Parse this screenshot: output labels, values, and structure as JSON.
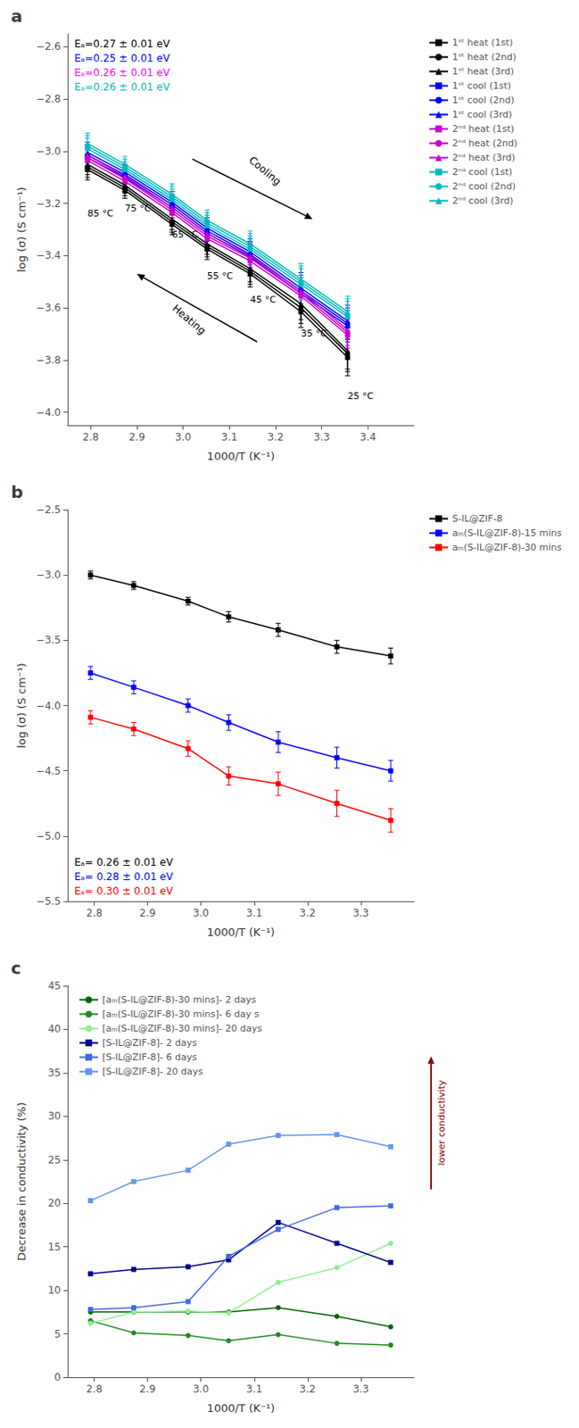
{
  "chart_data": [
    {
      "type": "line",
      "title": "a",
      "xlabel": "1000/T (K⁻¹)",
      "ylabel": "log (σ) (S cm⁻¹)",
      "xlim": [
        2.75,
        3.5
      ],
      "ylim": [
        -4.05,
        -2.55
      ],
      "xticks": [
        2.8,
        2.9,
        {
          "value": 3.0,
          "label": "3.0"
        },
        3.1,
        3.2,
        3.3,
        3.4
      ],
      "yticks": [
        {
          "value": -4.0,
          "label": "−4.0"
        },
        {
          "value": -3.8,
          "label": "−3.8"
        },
        {
          "value": -3.6,
          "label": "−3.6"
        },
        {
          "value": -3.4,
          "label": "−3.4"
        },
        {
          "value": -3.2,
          "label": "−3.2"
        },
        {
          "value": -3.0,
          "label": "−3.0"
        },
        {
          "value": -2.8,
          "label": "−2.8"
        },
        {
          "value": -2.6,
          "label": "−2.6"
        }
      ],
      "grid": false,
      "legend": "right",
      "x": [
        2.793,
        2.874,
        2.976,
        3.052,
        3.145,
        3.255,
        3.356
      ],
      "series": [
        {
          "name": "1ˢᵗ heat (1st)",
          "color": "#000000",
          "marker": "square",
          "values": [
            -3.07,
            -3.15,
            -3.28,
            -3.375,
            -3.47,
            -3.615,
            -3.79
          ],
          "yerr": [
            0.04,
            0.03,
            0.04,
            0.04,
            0.05,
            0.06,
            0.07
          ]
        },
        {
          "name": "1ˢᵗ heat (2nd)",
          "color": "#000000",
          "marker": "circle",
          "values": [
            -3.06,
            -3.14,
            -3.27,
            -3.365,
            -3.46,
            -3.6,
            -3.775
          ],
          "yerr": [
            0.04,
            0.03,
            0.04,
            0.04,
            0.05,
            0.06,
            0.07
          ]
        },
        {
          "name": "1ˢᵗ heat (3rd)",
          "color": "#000000",
          "marker": "triangle",
          "values": [
            -3.05,
            -3.13,
            -3.26,
            -3.355,
            -3.45,
            -3.585,
            -3.765
          ],
          "yerr": [
            0.04,
            0.03,
            0.04,
            0.04,
            0.05,
            0.06,
            0.07
          ]
        },
        {
          "name": "1ˢᵗ cool (1st)",
          "color": "#0000FF",
          "marker": "square",
          "values": [
            -3.025,
            -3.1,
            -3.215,
            -3.315,
            -3.405,
            -3.545,
            -3.67
          ],
          "yerr": [
            0.04,
            0.03,
            0.04,
            0.04,
            0.05,
            0.06,
            0.06
          ]
        },
        {
          "name": "1ˢᵗ cool (2nd)",
          "color": "#0000FF",
          "marker": "circle",
          "values": [
            -3.015,
            -3.09,
            -3.205,
            -3.305,
            -3.395,
            -3.535,
            -3.66
          ],
          "yerr": [
            0.04,
            0.03,
            0.04,
            0.04,
            0.05,
            0.06,
            0.06
          ]
        },
        {
          "name": "1ˢᵗ cool (3rd)",
          "color": "#0000FF",
          "marker": "triangle",
          "values": [
            -3.005,
            -3.08,
            -3.195,
            -3.295,
            -3.385,
            -3.525,
            -3.65
          ],
          "yerr": [
            0.04,
            0.03,
            0.04,
            0.04,
            0.05,
            0.06,
            0.06
          ]
        },
        {
          "name": "2ⁿᵈ heat (1st)",
          "color": "#CC00CC",
          "marker": "square",
          "values": [
            -3.035,
            -3.115,
            -3.235,
            -3.335,
            -3.42,
            -3.555,
            -3.705
          ],
          "yerr": [
            0.04,
            0.03,
            0.04,
            0.04,
            0.05,
            0.06,
            0.06
          ]
        },
        {
          "name": "2ⁿᵈ heat (2nd)",
          "color": "#CC00CC",
          "marker": "circle",
          "values": [
            -3.025,
            -3.105,
            -3.225,
            -3.325,
            -3.41,
            -3.545,
            -3.695
          ],
          "yerr": [
            0.04,
            0.03,
            0.04,
            0.04,
            0.05,
            0.06,
            0.06
          ]
        },
        {
          "name": "2ⁿᵈ heat (3rd)",
          "color": "#CC00CC",
          "marker": "triangle",
          "values": [
            -3.015,
            -3.095,
            -3.215,
            -3.315,
            -3.4,
            -3.535,
            -3.685
          ],
          "yerr": [
            0.04,
            0.03,
            0.04,
            0.04,
            0.05,
            0.06,
            0.06
          ]
        },
        {
          "name": "2ⁿᵈ cool (1st)",
          "color": "#00BBBB",
          "marker": "square",
          "values": [
            -2.99,
            -3.07,
            -3.185,
            -3.285,
            -3.375,
            -3.51,
            -3.635
          ],
          "yerr": [
            0.04,
            0.03,
            0.04,
            0.04,
            0.05,
            0.06,
            0.06
          ]
        },
        {
          "name": "2ⁿᵈ cool (2nd)",
          "color": "#00BBBB",
          "marker": "circle",
          "values": [
            -2.98,
            -3.06,
            -3.175,
            -3.275,
            -3.365,
            -3.5,
            -3.625
          ],
          "yerr": [
            0.04,
            0.03,
            0.04,
            0.04,
            0.05,
            0.06,
            0.06
          ]
        },
        {
          "name": "2ⁿᵈ cool (3rd)",
          "color": "#00BBBB",
          "marker": "triangle",
          "values": [
            -2.97,
            -3.05,
            -3.165,
            -3.265,
            -3.355,
            -3.49,
            -3.615
          ],
          "yerr": [
            0.04,
            0.03,
            0.04,
            0.04,
            0.05,
            0.06,
            0.06
          ]
        }
      ],
      "annotations": [
        {
          "text": "85 °C",
          "x": 2.793,
          "y": -3.22
        },
        {
          "text": "75 °C",
          "x": 2.874,
          "y": -3.2
        },
        {
          "text": "65 °C",
          "x": 2.976,
          "y": -3.3
        },
        {
          "text": "55 °C",
          "x": 3.052,
          "y": -3.46
        },
        {
          "text": "45 °C",
          "x": 3.145,
          "y": -3.55
        },
        {
          "text": "35 °C",
          "x": 3.255,
          "y": -3.68
        },
        {
          "text": "25 °C",
          "x": 3.356,
          "y": -3.92
        },
        {
          "text": "Cooling",
          "x": 3.17,
          "y": -3.09,
          "arrow_from": [
            3.02,
            -3.03
          ],
          "arrow_to": [
            3.28,
            -3.26
          ]
        },
        {
          "text": "Heating",
          "x": 3.02,
          "y": -3.63,
          "arrow_from": [
            3.16,
            -3.73
          ],
          "arrow_to": [
            2.9,
            -3.47
          ]
        },
        {
          "text": "Eₐ=0.27 ± 0.01 eV",
          "color": "#000000"
        },
        {
          "text": "Eₐ=0.25 ± 0.01 eV",
          "color": "#0000FF"
        },
        {
          "text": "Eₐ=0.26 ± 0.01 eV",
          "color": "#FF00FF"
        },
        {
          "text": "Eₐ=0.26 ± 0.01 eV",
          "color": "#00BBBB"
        }
      ]
    },
    {
      "type": "line",
      "title": "b",
      "xlabel": "1000/T (K⁻¹)",
      "ylabel": "log (σ) (S cm⁻¹)",
      "xlim": [
        2.75,
        3.4
      ],
      "ylim": [
        -5.5,
        -2.5
      ],
      "xticks": [
        2.8,
        2.9,
        {
          "value": 3.0,
          "label": "3.0"
        },
        3.1,
        3.2,
        3.3
      ],
      "yticks": [
        {
          "value": -5.5,
          "label": "−5.5"
        },
        {
          "value": -5.0,
          "label": "−5.0"
        },
        {
          "value": -4.5,
          "label": "−4.5"
        },
        {
          "value": -4.0,
          "label": "−4.0"
        },
        {
          "value": -3.5,
          "label": "−3.5"
        },
        {
          "value": -3.0,
          "label": "−3.0"
        },
        {
          "value": -2.5,
          "label": "−2.5"
        }
      ],
      "grid": false,
      "legend": "right",
      "x": [
        2.793,
        2.874,
        2.976,
        3.052,
        3.145,
        3.255,
        3.356
      ],
      "series": [
        {
          "name": "S-IL@ZIF-8",
          "color": "#000000",
          "marker": "square",
          "values": [
            -3.0,
            -3.08,
            -3.2,
            -3.32,
            -3.42,
            -3.55,
            -3.62
          ],
          "yerr": [
            0.03,
            0.03,
            0.03,
            0.04,
            0.05,
            0.05,
            0.06
          ]
        },
        {
          "name": "aₘ(S-IL@ZIF-8)-15 mins",
          "color": "#0000FF",
          "marker": "square",
          "values": [
            -3.75,
            -3.86,
            -4.0,
            -4.13,
            -4.28,
            -4.4,
            -4.5
          ],
          "yerr": [
            0.05,
            0.05,
            0.05,
            0.06,
            0.08,
            0.08,
            0.08
          ]
        },
        {
          "name": "aₘ(S-IL@ZIF-8)-30 mins",
          "color": "#FF0000",
          "marker": "square",
          "values": [
            -4.09,
            -4.18,
            -4.33,
            -4.54,
            -4.6,
            -4.75,
            -4.88
          ],
          "yerr": [
            0.05,
            0.05,
            0.06,
            0.07,
            0.09,
            0.1,
            0.09
          ]
        }
      ],
      "annotations": [
        {
          "text": "Eₐ= 0.26 ± 0.01 eV",
          "color": "#000000"
        },
        {
          "text": "Eₐ= 0.28 ± 0.01 eV",
          "color": "#0000FF"
        },
        {
          "text": "Eₐ= 0.30 ± 0.01 eV",
          "color": "#FF0000"
        }
      ]
    },
    {
      "type": "line",
      "title": "c",
      "xlabel": "1000/T (K⁻¹)",
      "ylabel": "Decrease in conductivity (%)",
      "xlim": [
        2.75,
        3.4
      ],
      "ylim": [
        0,
        45
      ],
      "xticks": [
        2.8,
        2.9,
        {
          "value": 3.0,
          "label": "3.0"
        },
        3.1,
        3.2,
        3.3
      ],
      "yticks": [
        0,
        5,
        10,
        15,
        20,
        25,
        30,
        35,
        40,
        45
      ],
      "grid": false,
      "legend": "upper left",
      "x": [
        2.793,
        2.874,
        2.976,
        3.052,
        3.145,
        3.255,
        3.356
      ],
      "series": [
        {
          "name": "[aₘ(S-IL@ZIF-8)-30 mins]- 2 days",
          "color": "#006400",
          "marker": "circle",
          "values": [
            7.5,
            7.5,
            7.5,
            7.5,
            8.0,
            7.0,
            5.8
          ]
        },
        {
          "name": "[aₘ(S-IL@ZIF-8)-30 mins]- 6 day s",
          "color": "#228B22",
          "marker": "circle",
          "values": [
            6.5,
            5.1,
            4.8,
            4.2,
            4.9,
            3.9,
            3.7
          ]
        },
        {
          "name": "[aₘ(S-IL@ZIF-8)-30 mins]- 20 days",
          "color": "#90EE90",
          "marker": "circle",
          "values": [
            6.2,
            7.5,
            7.6,
            7.4,
            10.9,
            12.6,
            15.4
          ]
        },
        {
          "name": "[S-IL@ZIF-8]- 2 days",
          "color": "#00008B",
          "marker": "square",
          "values": [
            11.9,
            12.4,
            12.7,
            13.5,
            17.8,
            15.4,
            13.2
          ]
        },
        {
          "name": "[S-IL@ZIF-8]- 6 days",
          "color": "#4169E1",
          "marker": "square",
          "values": [
            7.8,
            8.0,
            8.7,
            13.9,
            17.0,
            19.5,
            19.7
          ]
        },
        {
          "name": "[S-IL@ZIF-8]- 20 days",
          "color": "#6495ED",
          "marker": "square",
          "values": [
            20.3,
            22.5,
            23.8,
            26.8,
            27.8,
            27.9,
            26.5
          ]
        }
      ],
      "annotations": [
        {
          "text": "lower conductivity",
          "color": "#8B0000"
        }
      ]
    }
  ]
}
